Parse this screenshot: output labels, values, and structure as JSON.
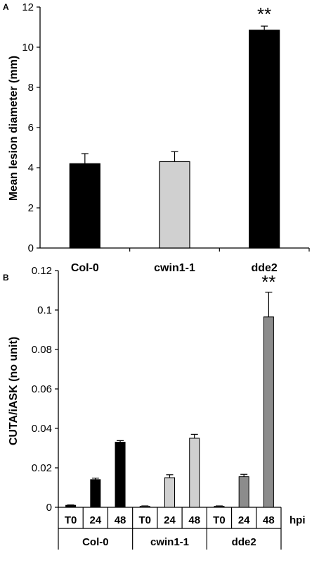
{
  "panels": {
    "a_label": "A",
    "b_label": "B"
  },
  "chart_data": [
    {
      "type": "bar",
      "panel": "A",
      "categories": [
        "Col-0",
        "cwin1-1",
        "dde2"
      ],
      "values": [
        4.2,
        4.3,
        10.85
      ],
      "errors": [
        0.5,
        0.5,
        0.2
      ],
      "colors": [
        "#000000",
        "#d0d0d0",
        "#000000"
      ],
      "annotations": [
        {
          "category": "dde2",
          "text": "**"
        }
      ],
      "xlabel": "",
      "ylabel": "Mean lesion diameter (mm)",
      "ylim": [
        0,
        12
      ],
      "yticks": [
        0,
        2,
        4,
        6,
        8,
        10,
        12
      ],
      "grid": false
    },
    {
      "type": "bar",
      "panel": "B",
      "groups": [
        "Col-0",
        "cwin1-1",
        "dde2"
      ],
      "timepoints": [
        "T0",
        "24",
        "48"
      ],
      "time_unit": "hpi",
      "values": [
        [
          0.001,
          0.014,
          0.033
        ],
        [
          0.0005,
          0.015,
          0.035
        ],
        [
          0.0005,
          0.0155,
          0.0965
        ]
      ],
      "errors": [
        [
          0.0002,
          0.0008,
          0.0008
        ],
        [
          0.0002,
          0.0015,
          0.002
        ],
        [
          0.0002,
          0.0012,
          0.0125
        ]
      ],
      "colors": [
        "#000000",
        "#d0d0d0",
        "#8c8c8c"
      ],
      "annotations": [
        {
          "group": "dde2",
          "timepoint": "48",
          "text": "**"
        }
      ],
      "xlabel": "",
      "ylabel": "CUTA/iASK (no unit)",
      "ylim": [
        0,
        0.12
      ],
      "yticks": [
        "0",
        "0.02",
        "0.04",
        "0.06",
        "0.08",
        "0.1",
        "0.12"
      ],
      "grid": false
    }
  ]
}
